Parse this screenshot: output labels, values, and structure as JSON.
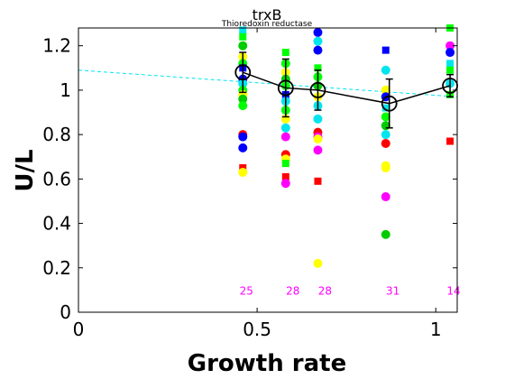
{
  "chart_data": {
    "type": "scatter",
    "title": "trxB",
    "subtitle": "Thioredoxin reductase",
    "xlabel": "Growth rate",
    "ylabel": "U/L",
    "xlim": [
      0,
      1.06
    ],
    "ylim": [
      0,
      1.28
    ],
    "xticks": [
      "0",
      "0.5",
      "1"
    ],
    "yticks": [
      "0",
      "0.2",
      "0.4",
      "0.6",
      "0.8",
      "1",
      "1.2"
    ],
    "grid": false,
    "legend": "none",
    "fit_line": {
      "x": [
        0,
        1.06
      ],
      "y": [
        1.09,
        0.97
      ],
      "color": "#00e5ee",
      "style": "dashed"
    },
    "mean_series": {
      "x": [
        0.46,
        0.58,
        0.67,
        0.87,
        1.04
      ],
      "y": [
        1.08,
        1.01,
        1.0,
        0.94,
        1.02
      ],
      "err": [
        0.09,
        0.13,
        0.09,
        0.11,
        0.05
      ],
      "color": "#000000"
    },
    "counts": [
      {
        "x": 0.47,
        "label": "25"
      },
      {
        "x": 0.6,
        "label": "28"
      },
      {
        "x": 0.69,
        "label": "28"
      },
      {
        "x": 0.88,
        "label": "31"
      },
      {
        "x": 1.05,
        "label": "14"
      }
    ],
    "count_color": "#ff00ff",
    "points": [
      {
        "x": 0.46,
        "y": 1.27,
        "c": "#00e5ee",
        "s": "square"
      },
      {
        "x": 0.46,
        "y": 1.24,
        "c": "#00ff00",
        "s": "square"
      },
      {
        "x": 0.46,
        "y": 1.2,
        "c": "#00cc00",
        "s": "circle"
      },
      {
        "x": 0.46,
        "y": 1.15,
        "c": "#ffff00",
        "s": "circle"
      },
      {
        "x": 0.46,
        "y": 1.12,
        "c": "#00ff00",
        "s": "circle"
      },
      {
        "x": 0.46,
        "y": 1.1,
        "c": "#0000ff",
        "s": "square"
      },
      {
        "x": 0.46,
        "y": 1.05,
        "c": "#0000ff",
        "s": "circle"
      },
      {
        "x": 0.46,
        "y": 1.03,
        "c": "#00e5ee",
        "s": "circle"
      },
      {
        "x": 0.46,
        "y": 1.0,
        "c": "#00ff00",
        "s": "circle"
      },
      {
        "x": 0.46,
        "y": 0.98,
        "c": "#ffff00",
        "s": "circle"
      },
      {
        "x": 0.46,
        "y": 0.96,
        "c": "#00cc00",
        "s": "circle"
      },
      {
        "x": 0.46,
        "y": 0.93,
        "c": "#00ff00",
        "s": "circle"
      },
      {
        "x": 0.46,
        "y": 0.8,
        "c": "#ff0000",
        "s": "circle"
      },
      {
        "x": 0.46,
        "y": 0.79,
        "c": "#0000ff",
        "s": "circle"
      },
      {
        "x": 0.46,
        "y": 0.74,
        "c": "#0000ff",
        "s": "circle"
      },
      {
        "x": 0.46,
        "y": 0.65,
        "c": "#ff0000",
        "s": "square"
      },
      {
        "x": 0.46,
        "y": 0.63,
        "c": "#ffff00",
        "s": "circle"
      },
      {
        "x": 0.58,
        "y": 1.17,
        "c": "#00ff00",
        "s": "square"
      },
      {
        "x": 0.58,
        "y": 1.12,
        "c": "#00ff00",
        "s": "circle"
      },
      {
        "x": 0.58,
        "y": 1.08,
        "c": "#ffff00",
        "s": "circle"
      },
      {
        "x": 0.58,
        "y": 1.05,
        "c": "#00cc00",
        "s": "circle"
      },
      {
        "x": 0.58,
        "y": 1.02,
        "c": "#00ff00",
        "s": "circle"
      },
      {
        "x": 0.58,
        "y": 0.98,
        "c": "#0000ff",
        "s": "square"
      },
      {
        "x": 0.58,
        "y": 0.95,
        "c": "#00e5ee",
        "s": "circle"
      },
      {
        "x": 0.58,
        "y": 0.91,
        "c": "#00ff00",
        "s": "circle"
      },
      {
        "x": 0.58,
        "y": 0.87,
        "c": "#ffff00",
        "s": "circle"
      },
      {
        "x": 0.58,
        "y": 0.83,
        "c": "#00e5ee",
        "s": "circle"
      },
      {
        "x": 0.58,
        "y": 0.79,
        "c": "#ff00ff",
        "s": "circle"
      },
      {
        "x": 0.58,
        "y": 0.71,
        "c": "#ff0000",
        "s": "circle"
      },
      {
        "x": 0.58,
        "y": 0.69,
        "c": "#ffff00",
        "s": "circle"
      },
      {
        "x": 0.58,
        "y": 0.67,
        "c": "#00ff00",
        "s": "square"
      },
      {
        "x": 0.58,
        "y": 0.61,
        "c": "#ff0000",
        "s": "square"
      },
      {
        "x": 0.58,
        "y": 0.58,
        "c": "#ff00ff",
        "s": "circle"
      },
      {
        "x": 0.67,
        "y": 1.26,
        "c": "#0000ff",
        "s": "circle"
      },
      {
        "x": 0.67,
        "y": 1.22,
        "c": "#00e5ee",
        "s": "circle"
      },
      {
        "x": 0.67,
        "y": 1.18,
        "c": "#0000ff",
        "s": "circle"
      },
      {
        "x": 0.67,
        "y": 1.1,
        "c": "#00ff00",
        "s": "square"
      },
      {
        "x": 0.67,
        "y": 1.06,
        "c": "#00ff00",
        "s": "circle"
      },
      {
        "x": 0.67,
        "y": 1.02,
        "c": "#00cc00",
        "s": "circle"
      },
      {
        "x": 0.67,
        "y": 0.97,
        "c": "#ffff00",
        "s": "circle"
      },
      {
        "x": 0.67,
        "y": 0.93,
        "c": "#00e5ee",
        "s": "circle"
      },
      {
        "x": 0.67,
        "y": 0.87,
        "c": "#00e5ee",
        "s": "circle"
      },
      {
        "x": 0.67,
        "y": 0.81,
        "c": "#ff0000",
        "s": "circle"
      },
      {
        "x": 0.67,
        "y": 0.79,
        "c": "#ff00ff",
        "s": "circle"
      },
      {
        "x": 0.67,
        "y": 0.78,
        "c": "#ffff00",
        "s": "circle"
      },
      {
        "x": 0.67,
        "y": 0.73,
        "c": "#ff00ff",
        "s": "circle"
      },
      {
        "x": 0.67,
        "y": 0.59,
        "c": "#ff0000",
        "s": "square"
      },
      {
        "x": 0.67,
        "y": 0.22,
        "c": "#ffff00",
        "s": "circle"
      },
      {
        "x": 0.86,
        "y": 1.18,
        "c": "#0000ff",
        "s": "square"
      },
      {
        "x": 0.86,
        "y": 1.09,
        "c": "#00e5ee",
        "s": "circle"
      },
      {
        "x": 0.86,
        "y": 1.0,
        "c": "#ffff00",
        "s": "circle"
      },
      {
        "x": 0.86,
        "y": 0.97,
        "c": "#0000ff",
        "s": "circle"
      },
      {
        "x": 0.86,
        "y": 0.92,
        "c": "#00e5ee",
        "s": "square"
      },
      {
        "x": 0.86,
        "y": 0.88,
        "c": "#00ff00",
        "s": "circle"
      },
      {
        "x": 0.86,
        "y": 0.84,
        "c": "#00cc00",
        "s": "circle"
      },
      {
        "x": 0.86,
        "y": 0.8,
        "c": "#00e5ee",
        "s": "circle"
      },
      {
        "x": 0.86,
        "y": 0.76,
        "c": "#ff0000",
        "s": "circle"
      },
      {
        "x": 0.86,
        "y": 0.66,
        "c": "#ffff00",
        "s": "circle"
      },
      {
        "x": 0.86,
        "y": 0.65,
        "c": "#ffff00",
        "s": "circle"
      },
      {
        "x": 0.86,
        "y": 0.52,
        "c": "#ff00ff",
        "s": "circle"
      },
      {
        "x": 0.86,
        "y": 0.35,
        "c": "#00cc00",
        "s": "circle"
      },
      {
        "x": 1.04,
        "y": 1.28,
        "c": "#00ff00",
        "s": "square"
      },
      {
        "x": 1.04,
        "y": 1.2,
        "c": "#ff00ff",
        "s": "circle"
      },
      {
        "x": 1.04,
        "y": 1.17,
        "c": "#0000ff",
        "s": "circle"
      },
      {
        "x": 1.04,
        "y": 1.12,
        "c": "#00e5ee",
        "s": "square"
      },
      {
        "x": 1.04,
        "y": 1.09,
        "c": "#00ff00",
        "s": "square"
      },
      {
        "x": 1.04,
        "y": 1.03,
        "c": "#00e5ee",
        "s": "circle"
      },
      {
        "x": 1.04,
        "y": 0.98,
        "c": "#00ff00",
        "s": "square"
      },
      {
        "x": 1.04,
        "y": 0.77,
        "c": "#ff0000",
        "s": "square"
      }
    ]
  }
}
